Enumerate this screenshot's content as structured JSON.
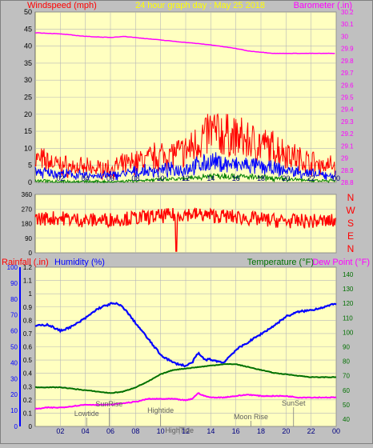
{
  "header": {
    "left_label": "Windspeed (mph)",
    "center_label": "24 hour graph day : May 25 2018",
    "right_label": "Barometer (.in)"
  },
  "colors": {
    "background": "#c0c0c0",
    "plot_bg": "#ffffc0",
    "grid": "#b8b8b8",
    "wind": "#ff0000",
    "wind_avg": "#0000ff",
    "wind_low": "#008000",
    "barometer": "#ff00ff",
    "direction": "#ff0000",
    "humidity": "#0000ff",
    "temperature": "#007000",
    "dewpoint": "#ff00ff",
    "rain": "#ff0000"
  },
  "chart_data": [
    {
      "type": "line",
      "x_ticks": [
        "02",
        "04",
        "06",
        "08",
        "10",
        "12",
        "14",
        "16",
        "18",
        "20",
        "22",
        "00"
      ],
      "xlim": [
        0,
        24
      ],
      "x_unit": "hours",
      "ylabel_left": "Windspeed (mph)",
      "ylim_left": [
        0,
        50
      ],
      "y_ticks_left": [
        "0",
        "5",
        "10",
        "15",
        "20",
        "25",
        "30",
        "35",
        "40",
        "45",
        "50"
      ],
      "ylabel_right": "Barometer (.in)",
      "ylim_right": [
        28.8,
        30.2
      ],
      "y_ticks_right": [
        "28.8",
        "28.9",
        "29",
        "29.1",
        "29.2",
        "29.3",
        "29.4",
        "29.5",
        "29.6",
        "29.7",
        "29.8",
        "29.9",
        "30",
        "30.1",
        "30.2"
      ],
      "series": [
        {
          "name": "Barometer (.in)",
          "axis": "right",
          "x": [
            0,
            2,
            4,
            6,
            7,
            8,
            10,
            12,
            14,
            16,
            17,
            18,
            19,
            20,
            22,
            24
          ],
          "values": [
            30.03,
            30.02,
            30.0,
            29.99,
            30.0,
            29.99,
            29.97,
            29.95,
            29.93,
            29.9,
            29.88,
            29.87,
            29.86,
            29.86,
            29.86,
            29.86
          ]
        },
        {
          "name": "wind gust",
          "axis": "left",
          "x": [
            0,
            2,
            4,
            6,
            8,
            10,
            12,
            13,
            14,
            15,
            16,
            17,
            18,
            19,
            20,
            21,
            22,
            23,
            24
          ],
          "values": [
            7,
            5,
            4,
            4,
            6,
            8,
            9,
            12,
            15,
            14,
            13,
            12,
            11,
            10,
            9,
            7,
            6,
            5,
            5
          ]
        },
        {
          "name": "wind average",
          "axis": "left",
          "x": [
            0,
            2,
            4,
            6,
            8,
            10,
            12,
            13,
            14,
            15,
            16,
            17,
            18,
            19,
            20,
            21,
            22,
            23,
            24
          ],
          "values": [
            3,
            2.5,
            2,
            2,
            3,
            3.5,
            4,
            5,
            6,
            5.5,
            5,
            5,
            4.5,
            4,
            3.5,
            3,
            2.5,
            2,
            2
          ]
        },
        {
          "name": "wind low",
          "axis": "left",
          "x": [
            0,
            2,
            4,
            6,
            8,
            10,
            12,
            13,
            14,
            15,
            16,
            17,
            18,
            19,
            20,
            21,
            22,
            23,
            24
          ],
          "values": [
            0.5,
            0.3,
            0.2,
            0.2,
            0.5,
            0.8,
            1,
            1.5,
            2,
            2,
            1.8,
            1.6,
            1.4,
            1.2,
            1,
            0.8,
            0.6,
            0.5,
            0.5
          ]
        }
      ]
    },
    {
      "type": "line",
      "x_ticks": [
        "02",
        "04",
        "06",
        "08",
        "10",
        "12",
        "14",
        "16",
        "18",
        "20",
        "22",
        "00"
      ],
      "xlim": [
        0,
        24
      ],
      "ylim": [
        0,
        360
      ],
      "y_ticks": [
        "0",
        "90",
        "180",
        "270",
        "360"
      ],
      "right_labels": [
        "N",
        "W",
        "S",
        "E",
        "N"
      ],
      "series": [
        {
          "name": "Wind direction",
          "x": [
            0,
            2,
            4,
            6,
            8,
            10,
            12,
            14,
            16,
            18,
            20,
            22,
            24
          ],
          "values": [
            210,
            215,
            200,
            205,
            215,
            225,
            240,
            230,
            220,
            205,
            195,
            195,
            195
          ]
        }
      ]
    },
    {
      "type": "line",
      "x_ticks": [
        "02",
        "04",
        "06",
        "08",
        "10",
        "12",
        "14",
        "16",
        "18",
        "20",
        "22",
        "00"
      ],
      "xlim": [
        0,
        24
      ],
      "ylabel_left_1": "Rainfall (.in)",
      "ylim_rain": [
        0,
        1.2
      ],
      "y_ticks_rain": [
        "0",
        "0.1",
        "0.2",
        "0.3",
        "0.4",
        "0.5",
        "0.6",
        "0.7",
        "0.8",
        "0.9",
        "1",
        "1.1",
        "1.2"
      ],
      "ylabel_left_2": "Humidity (%)",
      "ylim_humidity": [
        0,
        100
      ],
      "y_ticks_humidity": [
        "0",
        "10",
        "20",
        "30",
        "40",
        "50",
        "60",
        "70",
        "80",
        "90",
        "100"
      ],
      "ylabel_right_1": "Temperature (°F)",
      "ylabel_right_2": "Dew Point (°F)",
      "ylim_temp": [
        35,
        145
      ],
      "y_ticks_temp": [
        "40",
        "50",
        "60",
        "70",
        "80",
        "90",
        "100",
        "110",
        "120",
        "130",
        "140"
      ],
      "series": [
        {
          "name": "Humidity (%)",
          "axis": "humidity",
          "x": [
            0,
            1,
            2,
            3,
            4,
            5,
            6,
            6.5,
            7,
            8,
            9,
            10,
            11,
            12,
            12.5,
            13,
            13.5,
            14,
            15,
            16,
            17,
            18,
            19,
            20,
            21,
            22,
            23,
            24
          ],
          "values": [
            63,
            64,
            60,
            63,
            68,
            74,
            77,
            77,
            75,
            65,
            55,
            45,
            40,
            38,
            40,
            46,
            42,
            42,
            40,
            48,
            53,
            58,
            63,
            69,
            72,
            73,
            75,
            77
          ]
        },
        {
          "name": "Temperature (°F)",
          "axis": "temp",
          "x": [
            0,
            1,
            2,
            3,
            4,
            5,
            6,
            7,
            8,
            9,
            10,
            11,
            12,
            13,
            14,
            15,
            16,
            17,
            18,
            19,
            20,
            21,
            22,
            23,
            24
          ],
          "values": [
            62,
            62,
            62,
            61,
            60,
            59,
            58,
            59,
            62,
            66,
            71,
            74,
            75,
            76,
            77,
            78,
            78,
            76,
            74,
            72,
            71,
            70,
            69,
            69,
            69
          ]
        },
        {
          "name": "Dew Point (°F)",
          "axis": "temp",
          "x": [
            0,
            1,
            2,
            3,
            4,
            5,
            6,
            7,
            8,
            9,
            10,
            11,
            12,
            12.5,
            13,
            13.5,
            14,
            15,
            16,
            17,
            18,
            19,
            20,
            21,
            22,
            23,
            24
          ],
          "values": [
            47,
            48,
            48,
            49,
            50,
            50,
            50,
            51,
            52,
            54,
            54,
            54,
            53,
            54,
            58,
            56,
            55,
            55,
            56,
            57,
            56,
            56,
            56,
            55,
            55,
            55,
            55
          ]
        },
        {
          "name": "Rainfall (.in)",
          "axis": "rain",
          "x": [
            0,
            24
          ],
          "values": [
            0,
            0
          ]
        }
      ],
      "annotations": [
        {
          "text": "SunRise",
          "x": 5.9
        },
        {
          "text": "Lowtide",
          "x": 4.1
        },
        {
          "text": "Hightide",
          "x": 10.0
        },
        {
          "text": "HighTide",
          "x": 11.5
        },
        {
          "text": "Moon Rise",
          "x": 17.2
        },
        {
          "text": "SunSet",
          "x": 20.6
        }
      ]
    }
  ],
  "panel2_header": {
    "rain_label": "Rainfall (.in)",
    "humidity_label": "Humidity (%)",
    "temp_label": "Temperature (°F)",
    "dew_label": "Dew Point (°F)"
  }
}
